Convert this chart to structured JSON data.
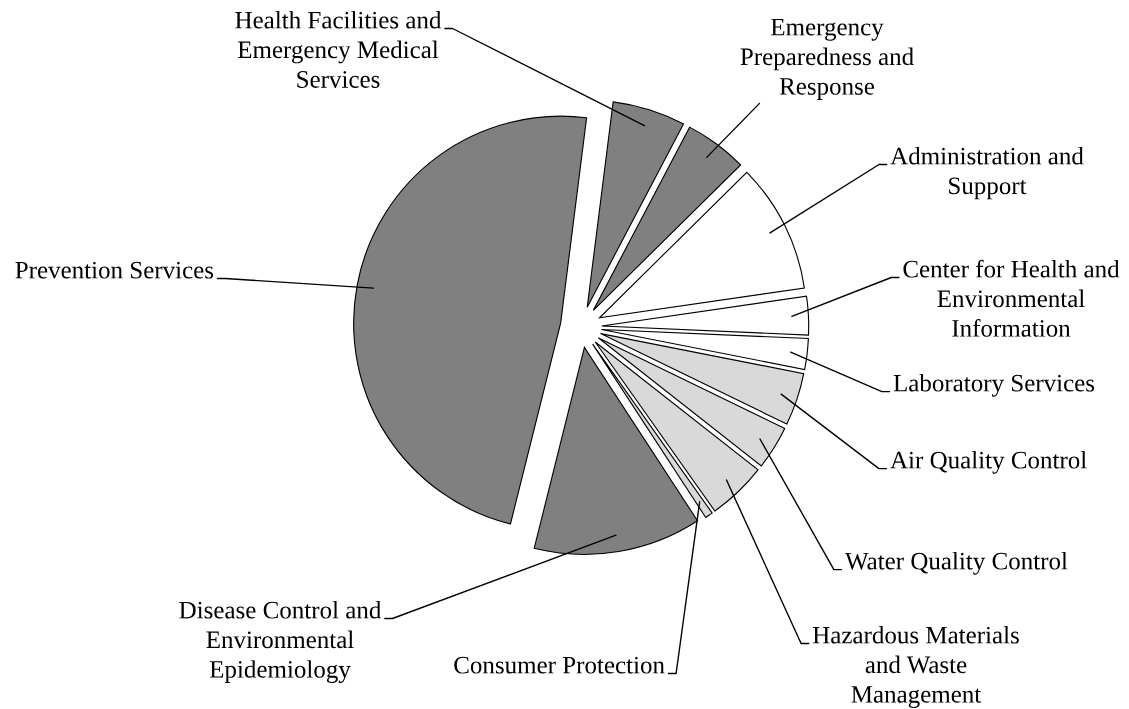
{
  "chart_data": {
    "type": "pie",
    "categories": [
      "Health Facilities and\nEmergency Medical\nServices",
      "Emergency\nPreparedness and\nResponse",
      "Administration and\nSupport",
      "Center for Health and\nEnvironmental\nInformation",
      "Laboratory Services",
      "Air Quality Control",
      "Water Quality Control",
      "Hazardous Materials\nand Waste\nManagement",
      "Consumer Protection",
      "Disease Control and\nEnvironmental\nEpidemiology",
      "Prevention Services"
    ],
    "values": [
      5.7,
      4.9,
      10.1,
      3.0,
      2.4,
      4.1,
      3.4,
      4.6,
      0.6,
      13.1,
      48.1
    ],
    "colors": [
      "#808080",
      "#808080",
      "#ffffff",
      "#ffffff",
      "#ffffff",
      "#d9d9d9",
      "#d9d9d9",
      "#d9d9d9",
      "#d9d9d9",
      "#808080",
      "#808080"
    ]
  }
}
